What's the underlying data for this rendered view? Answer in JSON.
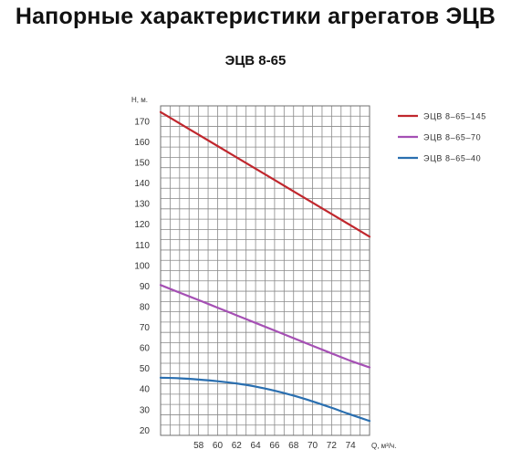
{
  "page": {
    "title": "Напорные характеристики агрегатов ЭЦВ",
    "subtitle": "ЭЦВ 8-65"
  },
  "chart_data": {
    "type": "line",
    "title": "ЭЦВ 8-65",
    "xlabel": "Q, м³/ч.",
    "ylabel": "Н, м.",
    "xlim": [
      54,
      76
    ],
    "ylim": [
      17.5,
      177.5
    ],
    "x_ticks": [
      "58",
      "60",
      "62",
      "64",
      "66",
      "68",
      "70",
      "72",
      "74"
    ],
    "y_ticks": [
      "20",
      "30",
      "40",
      "50",
      "60",
      "70",
      "80",
      "90",
      "100",
      "110",
      "120",
      "130",
      "140",
      "150",
      "160",
      "170"
    ],
    "grid": true,
    "legend_position": "top-right",
    "series": [
      {
        "name": "ЭЦВ 8–65–145",
        "color": "#c0272d",
        "x": [
          54,
          56,
          58,
          60,
          62,
          64,
          66,
          68,
          70,
          72,
          74,
          76
        ],
        "y": [
          174.5,
          169,
          163.5,
          158,
          152.5,
          147,
          141.5,
          136,
          130.5,
          125,
          119.5,
          114
        ]
      },
      {
        "name": "ЭЦВ 8–65–70",
        "color": "#a550b4",
        "x": [
          54,
          56,
          58,
          60,
          62,
          64,
          66,
          68,
          70,
          72,
          74,
          76
        ],
        "y": [
          90.5,
          86.8,
          83.2,
          79.5,
          75.8,
          72.1,
          68.4,
          64.7,
          61,
          57.3,
          53.7,
          50.5
        ]
      },
      {
        "name": "ЭЦВ 8–65–40",
        "color": "#2a6fb0",
        "x": [
          54,
          56,
          58,
          60,
          62,
          64,
          66,
          68,
          70,
          72,
          74,
          76
        ],
        "y": [
          45.5,
          45.2,
          44.6,
          43.8,
          42.7,
          41.2,
          39.2,
          36.8,
          34,
          30.9,
          27.6,
          24.5
        ]
      }
    ]
  }
}
